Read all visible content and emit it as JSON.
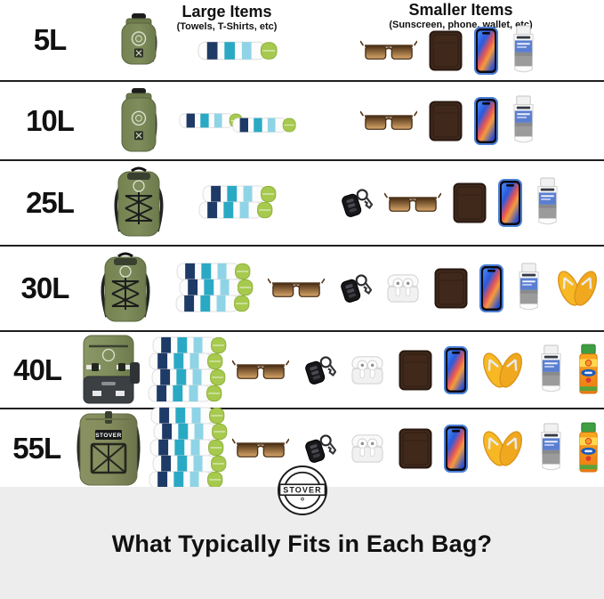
{
  "columns": {
    "large": {
      "title": "Large Items",
      "subtitle": "(Towels, T-Shirts, etc)"
    },
    "small": {
      "title": "Smaller Items",
      "subtitle": "(Sunscreen, phone, wallet, etc)"
    }
  },
  "rows": [
    {
      "size": "5L",
      "bag": "drybag-small",
      "towel_count": 1,
      "towel_layout": "single",
      "items": [
        "sunglasses",
        "wallet",
        "phone",
        "sunscreen-tube"
      ]
    },
    {
      "size": "10L",
      "bag": "drybag-tall",
      "towel_count": 2,
      "towel_layout": "pair",
      "items": [
        "sunglasses",
        "wallet",
        "phone",
        "sunscreen-tube"
      ]
    },
    {
      "size": "25L",
      "bag": "backpack-bungee",
      "towel_count": 2,
      "towel_layout": "stack",
      "items": [
        "car-key",
        "sunglasses",
        "wallet",
        "phone",
        "sunscreen-tube"
      ]
    },
    {
      "size": "30L",
      "bag": "backpack-bungee",
      "towel_count": 3,
      "towel_layout": "stack",
      "items": [
        "sunglasses",
        "car-key",
        "airpods",
        "wallet",
        "phone",
        "sunscreen-tube",
        "flip-flops"
      ]
    },
    {
      "size": "40L",
      "bag": "backpack-cooler",
      "towel_count": 4,
      "towel_layout": "stack",
      "items": [
        "sunglasses",
        "car-key",
        "airpods",
        "wallet",
        "phone",
        "flip-flops",
        "sunscreen-tube",
        "sunscreen-spray"
      ]
    },
    {
      "size": "55L",
      "bag": "backpack-rolltop",
      "towel_count": 5,
      "towel_layout": "stack",
      "items": [
        "sunglasses",
        "car-key",
        "airpods",
        "wallet",
        "phone",
        "flip-flops",
        "sunscreen-tube",
        "sunscreen-spray"
      ]
    }
  ],
  "bag_label": "STOVER",
  "badge": {
    "brand": "STOVER"
  },
  "footer": {
    "title": "What Typically Fits in Each Bag?"
  },
  "colors": {
    "olive": "#7f8c5c",
    "olive_dark": "#66744a",
    "towel_navy": "#1e3a66",
    "towel_teal": "#2aa9c4",
    "towel_sky": "#8fd4e6",
    "towel_green": "#a6c94e",
    "flipflop_yellow": "#f7b824",
    "phone_frame": "#4b7fd6",
    "tube_blue": "#5b7fd0",
    "spray_orange": "#f08c1e",
    "spray_cap_green": "#3e9e41",
    "wallet_brown": "#40291b",
    "separator": "#1f1f1f",
    "footer_bg": "#ededee"
  }
}
